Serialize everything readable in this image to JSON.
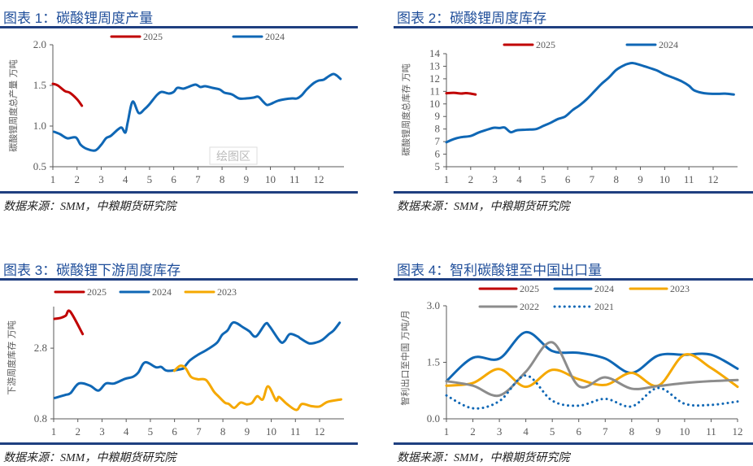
{
  "panels": [
    {
      "title": "图表 1：碳酸锂周度产量",
      "source": "数据来源：SMM，中粮期货研究院"
    },
    {
      "title": "图表 2：碳酸锂周度库存",
      "source": "数据来源：SMM，中粮期货研究院"
    },
    {
      "title": "图表 3：碳酸锂下游周度库存",
      "source": "数据来源：SMM，中粮期货研究院"
    },
    {
      "title": "图表 4：智利碳酸锂至中国出口量",
      "source": "数据来源：SMM，中粮期货研究院"
    }
  ],
  "colors": {
    "2025": "#c00000",
    "2024": "#0f67b5",
    "2023": "#f5a800",
    "2022": "#8c8c8c",
    "2021": "#0f67b5",
    "title": "#1f4e9a",
    "rule": "#1f3f80"
  },
  "chart_data": [
    {
      "type": "line",
      "ylabel": "碳酸锂周度总产量 万吨",
      "ylim": [
        0.5,
        2.0
      ],
      "yticks": [
        "0.5",
        "1.0",
        "1.5",
        "2.0"
      ],
      "xticks": [
        "1",
        "2",
        "3",
        "4",
        "5",
        "6",
        "7",
        "8",
        "9",
        "10",
        "11",
        "12"
      ],
      "watermark": "绘图区",
      "legend": "top",
      "series": [
        {
          "name": "2025",
          "style": "solid",
          "points": [
            [
              1,
              1.52
            ],
            [
              1.2,
              1.5
            ],
            [
              1.5,
              1.43
            ],
            [
              1.7,
              1.41
            ],
            [
              2.0,
              1.33
            ],
            [
              2.2,
              1.25
            ]
          ]
        },
        {
          "name": "2024",
          "style": "solid",
          "points": [
            [
              1.05,
              0.93
            ],
            [
              1.3,
              0.9
            ],
            [
              1.6,
              0.85
            ],
            [
              1.95,
              0.86
            ],
            [
              2.15,
              0.77
            ],
            [
              2.4,
              0.72
            ],
            [
              2.75,
              0.7
            ],
            [
              3.0,
              0.77
            ],
            [
              3.2,
              0.85
            ],
            [
              3.4,
              0.88
            ],
            [
              3.7,
              0.96
            ],
            [
              3.85,
              0.98
            ],
            [
              4.0,
              0.92
            ],
            [
              4.1,
              1.05
            ],
            [
              4.3,
              1.3
            ],
            [
              4.55,
              1.16
            ],
            [
              4.8,
              1.21
            ],
            [
              5.0,
              1.27
            ],
            [
              5.3,
              1.38
            ],
            [
              5.5,
              1.42
            ],
            [
              5.8,
              1.4
            ],
            [
              6.0,
              1.42
            ],
            [
              6.15,
              1.47
            ],
            [
              6.4,
              1.46
            ],
            [
              6.6,
              1.48
            ],
            [
              6.9,
              1.51
            ],
            [
              7.1,
              1.48
            ],
            [
              7.3,
              1.49
            ],
            [
              7.6,
              1.47
            ],
            [
              7.9,
              1.45
            ],
            [
              8.1,
              1.41
            ],
            [
              8.4,
              1.39
            ],
            [
              8.7,
              1.34
            ],
            [
              9.0,
              1.34
            ],
            [
              9.3,
              1.35
            ],
            [
              9.5,
              1.36
            ],
            [
              9.7,
              1.3
            ],
            [
              9.85,
              1.26
            ],
            [
              10.0,
              1.27
            ],
            [
              10.3,
              1.31
            ],
            [
              10.6,
              1.33
            ],
            [
              10.9,
              1.34
            ],
            [
              11.1,
              1.34
            ],
            [
              11.3,
              1.38
            ],
            [
              11.5,
              1.45
            ],
            [
              11.8,
              1.53
            ],
            [
              12.0,
              1.56
            ],
            [
              12.2,
              1.57
            ],
            [
              12.4,
              1.61
            ],
            [
              12.6,
              1.64
            ],
            [
              12.75,
              1.62
            ],
            [
              12.9,
              1.58
            ]
          ]
        }
      ]
    },
    {
      "type": "line",
      "ylabel": "碳酸锂周度总库存 万吨",
      "ylim": [
        5,
        14
      ],
      "yticks": [
        "5",
        "6",
        "7",
        "8",
        "9",
        "10",
        "11",
        "12",
        "13",
        "14"
      ],
      "xticks": [
        "1",
        "2",
        "3",
        "4",
        "5",
        "6",
        "7",
        "8",
        "9",
        "10",
        "11",
        "12"
      ],
      "legend": "top",
      "series": [
        {
          "name": "2025",
          "style": "solid",
          "points": [
            [
              1,
              10.85
            ],
            [
              1.3,
              10.88
            ],
            [
              1.6,
              10.83
            ],
            [
              1.8,
              10.86
            ],
            [
              2.0,
              10.82
            ],
            [
              2.2,
              10.75
            ]
          ]
        },
        {
          "name": "2024",
          "style": "solid",
          "points": [
            [
              1,
              6.95
            ],
            [
              1.3,
              7.2
            ],
            [
              1.6,
              7.35
            ],
            [
              2.0,
              7.45
            ],
            [
              2.3,
              7.7
            ],
            [
              2.6,
              7.9
            ],
            [
              2.95,
              8.1
            ],
            [
              3.2,
              8.08
            ],
            [
              3.4,
              8.12
            ],
            [
              3.65,
              7.75
            ],
            [
              3.9,
              7.9
            ],
            [
              4.3,
              7.95
            ],
            [
              4.7,
              8.0
            ],
            [
              5.0,
              8.25
            ],
            [
              5.3,
              8.5
            ],
            [
              5.6,
              8.8
            ],
            [
              5.9,
              9.0
            ],
            [
              6.2,
              9.5
            ],
            [
              6.5,
              9.9
            ],
            [
              6.8,
              10.4
            ],
            [
              7.1,
              11.0
            ],
            [
              7.4,
              11.6
            ],
            [
              7.7,
              12.1
            ],
            [
              8.0,
              12.7
            ],
            [
              8.3,
              13.05
            ],
            [
              8.5,
              13.2
            ],
            [
              8.7,
              13.25
            ],
            [
              9.0,
              13.1
            ],
            [
              9.4,
              12.85
            ],
            [
              9.7,
              12.65
            ],
            [
              10.0,
              12.35
            ],
            [
              10.4,
              12.05
            ],
            [
              10.7,
              11.8
            ],
            [
              11.0,
              11.45
            ],
            [
              11.2,
              11.1
            ],
            [
              11.5,
              10.9
            ],
            [
              11.8,
              10.82
            ],
            [
              12.2,
              10.8
            ],
            [
              12.5,
              10.82
            ],
            [
              12.85,
              10.75
            ]
          ]
        }
      ]
    },
    {
      "type": "line",
      "ylabel": "下游周度库存 万吨",
      "ylim": [
        0.8,
        4.0
      ],
      "yticks": [
        "0.8",
        "2.8"
      ],
      "xticks": [
        "1",
        "2",
        "3",
        "4",
        "5",
        "6",
        "7",
        "8",
        "9",
        "10",
        "11",
        "12"
      ],
      "legend": "top",
      "series": [
        {
          "name": "2025",
          "style": "solid",
          "points": [
            [
              1.03,
              3.63
            ],
            [
              1.3,
              3.66
            ],
            [
              1.5,
              3.72
            ],
            [
              1.68,
              3.84
            ],
            [
              2.2,
              3.2
            ]
          ]
        },
        {
          "name": "2024",
          "style": "solid",
          "points": [
            [
              1.05,
              1.39
            ],
            [
              1.5,
              1.48
            ],
            [
              1.7,
              1.53
            ],
            [
              2.04,
              1.8
            ],
            [
              2.5,
              1.74
            ],
            [
              2.85,
              1.6
            ],
            [
              3.16,
              1.8
            ],
            [
              3.5,
              1.8
            ],
            [
              3.94,
              1.93
            ],
            [
              4.28,
              1.99
            ],
            [
              4.5,
              2.11
            ],
            [
              4.78,
              2.4
            ],
            [
              5.23,
              2.26
            ],
            [
              5.45,
              2.27
            ],
            [
              5.7,
              2.16
            ],
            [
              6.29,
              2.21
            ],
            [
              6.4,
              2.26
            ],
            [
              6.63,
              2.45
            ],
            [
              6.96,
              2.61
            ],
            [
              7.35,
              2.76
            ],
            [
              7.75,
              2.95
            ],
            [
              7.97,
              3.18
            ],
            [
              8.19,
              3.3
            ],
            [
              8.44,
              3.53
            ],
            [
              8.86,
              3.38
            ],
            [
              9.09,
              3.28
            ],
            [
              9.37,
              3.13
            ],
            [
              9.76,
              3.49
            ],
            [
              9.93,
              3.42
            ],
            [
              10.37,
              2.99
            ],
            [
              10.55,
              3.0
            ],
            [
              10.77,
              3.2
            ],
            [
              11.1,
              3.13
            ],
            [
              11.2,
              3.08
            ],
            [
              11.55,
              2.94
            ],
            [
              11.8,
              2.95
            ],
            [
              12.1,
              3.03
            ],
            [
              12.39,
              3.2
            ],
            [
              12.58,
              3.3
            ],
            [
              12.83,
              3.52
            ]
          ]
        },
        {
          "name": "2023",
          "style": "solid",
          "points": [
            [
              5.99,
              2.16
            ],
            [
              6.23,
              2.3
            ],
            [
              6.45,
              2.24
            ],
            [
              6.68,
              1.99
            ],
            [
              6.96,
              1.92
            ],
            [
              7.3,
              1.9
            ],
            [
              7.63,
              1.57
            ],
            [
              7.8,
              1.45
            ],
            [
              8.08,
              1.26
            ],
            [
              8.25,
              1.22
            ],
            [
              8.47,
              1.11
            ],
            [
              8.73,
              1.26
            ],
            [
              8.98,
              1.21
            ],
            [
              9.2,
              1.25
            ],
            [
              9.42,
              1.44
            ],
            [
              9.65,
              1.35
            ],
            [
              9.87,
              1.72
            ],
            [
              10.2,
              1.32
            ],
            [
              10.32,
              1.42
            ],
            [
              10.65,
              1.22
            ],
            [
              11.04,
              1.05
            ],
            [
              11.27,
              1.22
            ],
            [
              11.66,
              1.16
            ],
            [
              12.0,
              1.15
            ],
            [
              12.33,
              1.28
            ],
            [
              12.89,
              1.35
            ]
          ]
        }
      ]
    },
    {
      "type": "line",
      "ylabel": "智利出口至中国 万吨/月",
      "ylim": [
        0.0,
        3.0
      ],
      "yticks": [
        "0.0",
        "1.5",
        "3.0"
      ],
      "xticks": [
        "1",
        "2",
        "3",
        "4",
        "5",
        "6",
        "7",
        "8",
        "9",
        "10",
        "11",
        "12"
      ],
      "legend": "top",
      "series": [
        {
          "name": "2025",
          "style": "solid",
          "points": []
        },
        {
          "name": "2024",
          "style": "solid",
          "points": [
            [
              1,
              1.0
            ],
            [
              2,
              1.62
            ],
            [
              3,
              1.6
            ],
            [
              4,
              2.3
            ],
            [
              5,
              1.8
            ],
            [
              6,
              1.75
            ],
            [
              7,
              1.6
            ],
            [
              8,
              1.22
            ],
            [
              9,
              1.68
            ],
            [
              10,
              1.7
            ],
            [
              11,
              1.7
            ],
            [
              12,
              1.33
            ]
          ]
        },
        {
          "name": "2023",
          "style": "solid",
          "points": [
            [
              1,
              0.88
            ],
            [
              2,
              0.95
            ],
            [
              3,
              1.32
            ],
            [
              4,
              0.85
            ],
            [
              5,
              1.3
            ],
            [
              6,
              1.05
            ],
            [
              7,
              0.9
            ],
            [
              8,
              1.22
            ],
            [
              9,
              0.88
            ],
            [
              10,
              1.7
            ],
            [
              11,
              1.35
            ],
            [
              12,
              0.85
            ]
          ]
        },
        {
          "name": "2022",
          "style": "solid",
          "points": [
            [
              1,
              1.0
            ],
            [
              2,
              0.88
            ],
            [
              3,
              0.62
            ],
            [
              4,
              1.25
            ],
            [
              5,
              2.03
            ],
            [
              6,
              0.87
            ],
            [
              7,
              1.1
            ],
            [
              8,
              0.8
            ],
            [
              9,
              0.87
            ],
            [
              10,
              0.95
            ],
            [
              11,
              1.0
            ],
            [
              12,
              1.03
            ]
          ]
        },
        {
          "name": "2021",
          "style": "dotted",
          "points": [
            [
              1,
              0.62
            ],
            [
              2,
              0.28
            ],
            [
              3,
              0.47
            ],
            [
              4,
              1.15
            ],
            [
              5,
              0.48
            ],
            [
              6,
              0.35
            ],
            [
              7,
              0.53
            ],
            [
              8,
              0.33
            ],
            [
              9,
              0.82
            ],
            [
              10,
              0.4
            ],
            [
              11,
              0.37
            ],
            [
              12,
              0.46
            ]
          ]
        }
      ]
    }
  ]
}
